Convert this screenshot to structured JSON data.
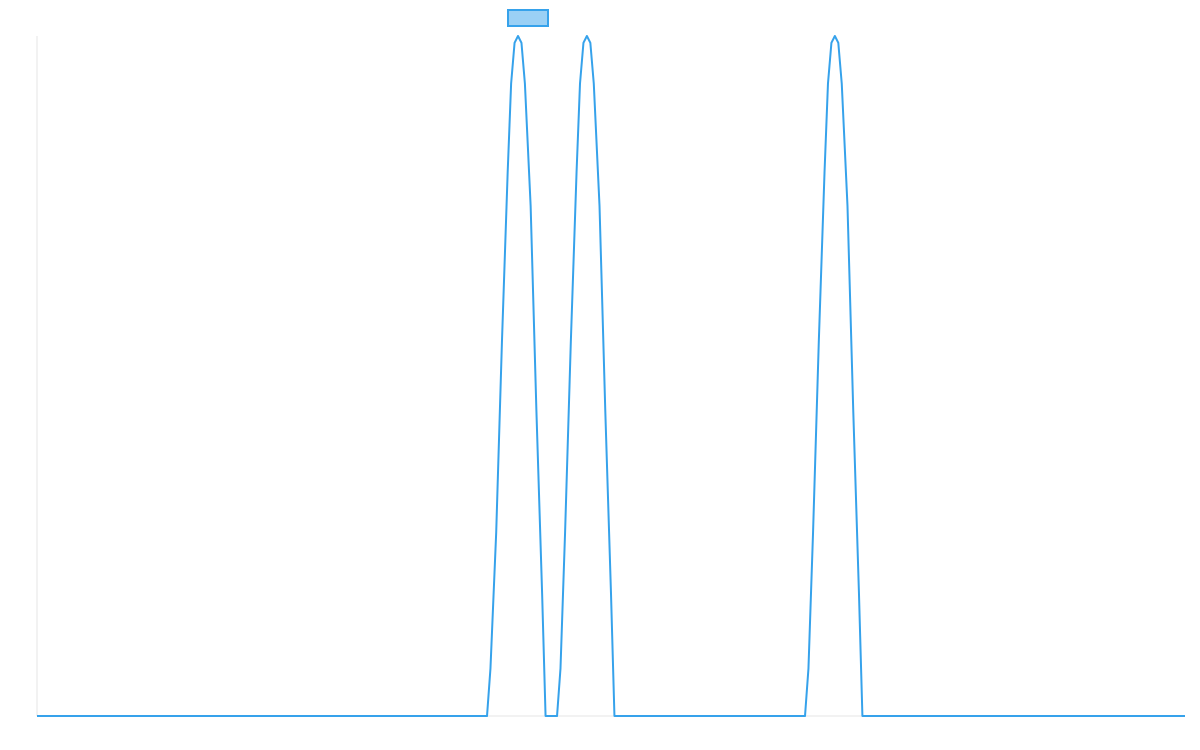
{
  "chart_data": {
    "type": "line",
    "title": "",
    "xlabel": "",
    "ylabel": "",
    "xlim": [
      0,
      100
    ],
    "ylim": [
      0,
      1
    ],
    "grid": false,
    "legend": {
      "placement": "top-center",
      "entries": [
        {
          "name": "",
          "color": "#36a2eb",
          "fill": "#9ad0f5"
        }
      ]
    },
    "series": [
      {
        "color": "#36a2eb",
        "x": [
          0,
          39.2,
          39.5,
          40,
          40.5,
          41,
          41.3,
          41.6,
          41.9,
          42.2,
          42.5,
          43,
          43.5,
          44,
          44.3,
          45.3,
          45.6,
          46,
          46.5,
          47,
          47.3,
          47.6,
          47.9,
          48.2,
          48.5,
          49,
          49.5,
          50,
          50.3,
          66.9,
          67.2,
          67.6,
          68.1,
          68.6,
          68.9,
          69.2,
          69.5,
          69.8,
          70.1,
          70.6,
          71.1,
          71.6,
          71.9,
          100
        ],
        "y": [
          0,
          0,
          0.07,
          0.27,
          0.55,
          0.8,
          0.93,
          0.99,
          1.0,
          0.99,
          0.93,
          0.75,
          0.45,
          0.18,
          0,
          0,
          0.07,
          0.27,
          0.55,
          0.8,
          0.93,
          0.99,
          1.0,
          0.99,
          0.93,
          0.75,
          0.45,
          0.18,
          0,
          0,
          0.07,
          0.27,
          0.55,
          0.8,
          0.93,
          0.99,
          1.0,
          0.99,
          0.93,
          0.75,
          0.45,
          0.18,
          0,
          0
        ]
      }
    ]
  }
}
